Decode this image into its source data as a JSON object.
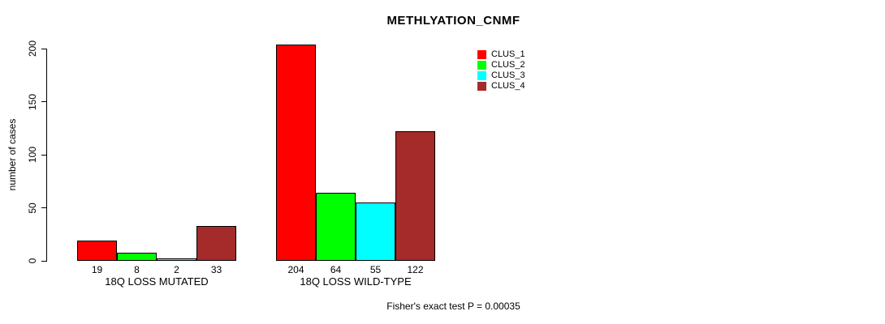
{
  "chart_data": {
    "type": "bar",
    "title": "METHLYATION_CNMF",
    "xlabel": "",
    "ylabel": "number of cases",
    "ylim": [
      0,
      200
    ],
    "yticks": [
      0,
      50,
      100,
      150,
      200
    ],
    "grid": false,
    "legend_position": "top-right",
    "series": [
      {
        "name": "CLUS_1",
        "color": "#ff0000"
      },
      {
        "name": "CLUS_2",
        "color": "#00ff00"
      },
      {
        "name": "CLUS_3",
        "color": "#00ffff"
      },
      {
        "name": "CLUS_4",
        "color": "#a52a2a"
      }
    ],
    "groups": [
      {
        "label": "18Q LOSS MUTATED",
        "values": [
          19,
          8,
          2,
          33
        ]
      },
      {
        "label": "18Q LOSS WILD-TYPE",
        "values": [
          204,
          64,
          55,
          122
        ]
      }
    ],
    "annotation": "Fisher's exact test P = 0.00035"
  }
}
